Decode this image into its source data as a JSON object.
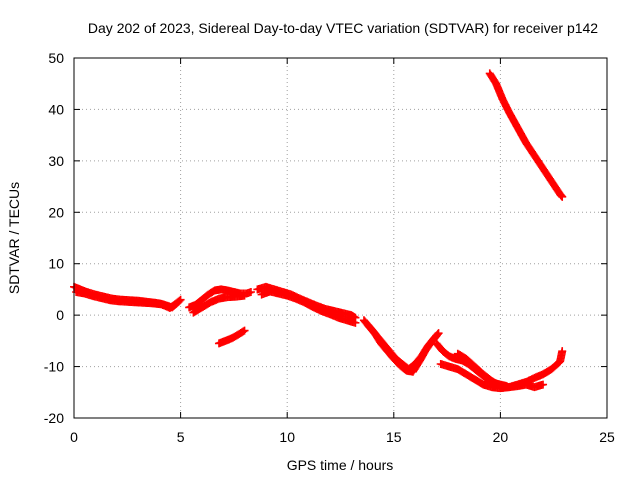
{
  "chart_data": {
    "type": "scatter",
    "title": "Day 202 of 2023, Sidereal Day-to-day VTEC variation (SDTVAR) for receiver p142",
    "xlabel": "GPS time / hours",
    "ylabel": "SDTVAR / TECUs",
    "xlim": [
      0,
      25
    ],
    "ylim": [
      -20,
      50
    ],
    "xticks": [
      0,
      5,
      10,
      15,
      20,
      25
    ],
    "yticks": [
      -20,
      -10,
      0,
      10,
      20,
      30,
      40,
      50
    ],
    "xtick_labels": [
      "0",
      "5",
      "10",
      "15",
      "20",
      "25"
    ],
    "ytick_labels": [
      "-20",
      "-10",
      "0",
      "10",
      "20",
      "30",
      "40",
      "50"
    ],
    "grid": true,
    "marker": "+",
    "color": "#ff0000",
    "series": [
      {
        "name": "track-1",
        "x": [
          0.0,
          0.3,
          0.6,
          1.0,
          1.4,
          1.8,
          2.2,
          2.6,
          3.0,
          3.4,
          3.8,
          4.1,
          4.4,
          4.6,
          4.8,
          5.0
        ],
        "y": [
          5.5,
          5.0,
          4.5,
          4.0,
          3.6,
          3.2,
          3.0,
          2.9,
          2.8,
          2.6,
          2.4,
          2.2,
          1.8,
          1.5,
          2.2,
          3.0
        ]
      },
      {
        "name": "track-2",
        "x": [
          0.1,
          0.5,
          0.9,
          1.3,
          1.7,
          2.1,
          2.5,
          2.9,
          3.3,
          3.7,
          4.1,
          4.5,
          4.9
        ],
        "y": [
          4.5,
          4.2,
          3.7,
          3.3,
          2.9,
          2.7,
          2.6,
          2.5,
          2.4,
          2.3,
          2.1,
          1.4,
          2.6
        ]
      },
      {
        "name": "track-3",
        "x": [
          5.4,
          5.7,
          6.0,
          6.3,
          6.6,
          6.9,
          7.2,
          7.5,
          7.8,
          8.1,
          8.3
        ],
        "y": [
          1.5,
          2.0,
          3.0,
          4.0,
          4.8,
          5.0,
          4.8,
          4.5,
          4.2,
          4.2,
          4.5
        ]
      },
      {
        "name": "track-4",
        "x": [
          5.6,
          6.0,
          6.4,
          6.8,
          7.2,
          7.6,
          8.0
        ],
        "y": [
          0.5,
          1.5,
          2.5,
          3.2,
          3.5,
          3.6,
          3.8
        ]
      },
      {
        "name": "track-5",
        "x": [
          6.8,
          7.1,
          7.4,
          7.7,
          8.0
        ],
        "y": [
          -5.5,
          -5.0,
          -4.5,
          -3.8,
          -3.0
        ]
      },
      {
        "name": "track-6",
        "x": [
          8.6,
          9.0,
          9.4,
          9.8,
          10.2,
          10.6,
          11.0,
          11.4,
          11.8,
          12.2,
          12.6,
          13.0,
          13.2
        ],
        "y": [
          5.0,
          5.5,
          5.0,
          4.5,
          4.0,
          3.2,
          2.5,
          1.8,
          1.2,
          0.8,
          0.4,
          0.0,
          -0.5
        ]
      },
      {
        "name": "track-7",
        "x": [
          8.8,
          9.2,
          9.6,
          10.0,
          10.4,
          10.8,
          11.2,
          11.6,
          12.0,
          12.4,
          12.8,
          13.2
        ],
        "y": [
          4.0,
          4.6,
          4.2,
          3.8,
          3.2,
          2.5,
          1.6,
          0.8,
          0.2,
          -0.5,
          -1.0,
          -1.5
        ]
      },
      {
        "name": "track-8",
        "x": [
          13.6,
          13.9,
          14.2,
          14.5,
          14.8,
          15.1,
          15.4,
          15.7,
          16.0,
          16.3,
          16.6,
          16.9,
          17.1
        ],
        "y": [
          -1.0,
          -2.5,
          -4.0,
          -5.5,
          -7.0,
          -8.5,
          -9.5,
          -10.5,
          -9.5,
          -8.0,
          -6.0,
          -4.5,
          -3.5
        ]
      },
      {
        "name": "track-9",
        "x": [
          13.8,
          14.1,
          14.4,
          14.7,
          15.0,
          15.3,
          15.6,
          15.9,
          16.2,
          16.5,
          16.8,
          17.0
        ],
        "y": [
          -2.0,
          -3.5,
          -5.5,
          -7.0,
          -8.5,
          -9.8,
          -10.8,
          -11.0,
          -9.0,
          -6.8,
          -5.0,
          -4.0
        ]
      },
      {
        "name": "track-10",
        "x": [
          17.0,
          17.3,
          17.6,
          17.9,
          18.2,
          18.5,
          18.8,
          19.1,
          19.4,
          19.7,
          20.0,
          20.3
        ],
        "y": [
          -5.5,
          -7.0,
          -8.0,
          -8.5,
          -8.8,
          -9.5,
          -10.5,
          -11.5,
          -12.5,
          -13.2,
          -13.5,
          -13.8
        ]
      },
      {
        "name": "track-11",
        "x": [
          17.2,
          17.6,
          18.0,
          18.4,
          18.8,
          19.2,
          19.6,
          20.0,
          20.4,
          20.8,
          21.2,
          21.6,
          22.0
        ],
        "y": [
          -9.5,
          -10.0,
          -10.5,
          -11.5,
          -12.5,
          -13.5,
          -14.0,
          -14.2,
          -14.0,
          -13.8,
          -13.5,
          -14.0,
          -13.5
        ]
      },
      {
        "name": "track-12",
        "x": [
          18.0,
          18.4,
          18.8,
          19.2,
          19.6,
          20.0,
          20.4,
          20.8,
          21.2,
          21.6,
          22.0,
          22.4,
          22.8,
          22.9
        ],
        "y": [
          -7.5,
          -8.5,
          -10.0,
          -11.5,
          -12.8,
          -13.8,
          -14.0,
          -13.5,
          -13.0,
          -12.2,
          -11.5,
          -10.5,
          -9.0,
          -7.0
        ]
      },
      {
        "name": "track-13",
        "x": [
          19.5,
          19.8,
          20.1,
          20.4,
          20.8,
          21.2,
          21.6,
          22.0,
          22.4,
          22.8,
          22.9
        ],
        "y": [
          47.0,
          45.0,
          42.0,
          39.5,
          36.5,
          33.5,
          31.0,
          28.5,
          26.0,
          23.5,
          23.0
        ]
      }
    ]
  }
}
